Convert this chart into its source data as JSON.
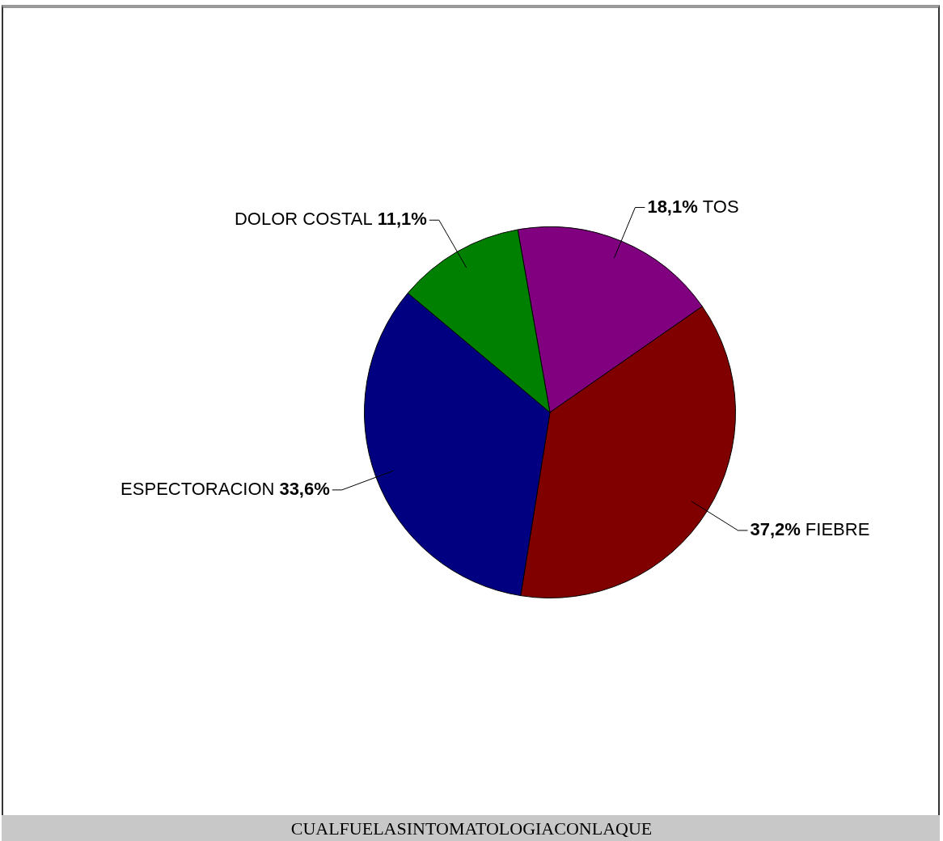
{
  "chart_data": {
    "type": "pie",
    "title": "CUALFUELASINTOMATOLOGIACONLAQUE",
    "categories": [
      "TOS",
      "FIEBRE",
      "ESPECTORACION",
      "DOLOR COSTAL"
    ],
    "values": [
      18.1,
      37.2,
      33.6,
      11.1
    ],
    "colors": [
      "#800080",
      "#800000",
      "#000080",
      "#008000"
    ],
    "value_labels": [
      "18,1%",
      "37,2%",
      "33,6%",
      "11,1%"
    ],
    "legend": false
  }
}
